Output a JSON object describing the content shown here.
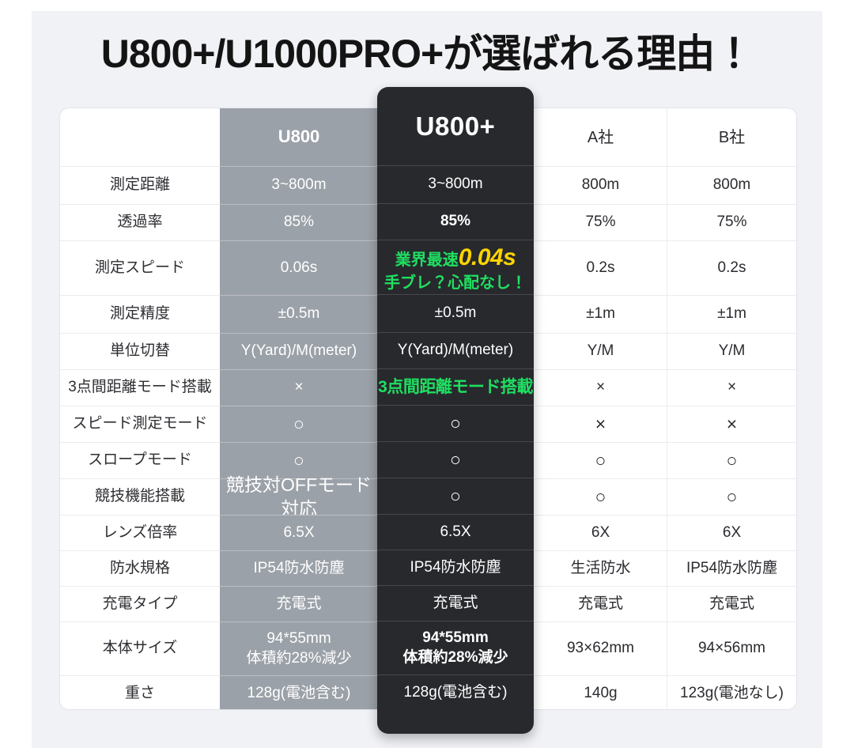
{
  "chart_data": {
    "type": "table",
    "title": "U800+/U1000PRO+が選ばれる理由！",
    "columns": {
      "u800": "U800",
      "u800_plus": "U800+",
      "a": "A社",
      "b": "B社"
    },
    "rows": [
      {
        "label": "測定距離",
        "u800": "3~800m",
        "u800_plus": "3~800m",
        "a": "800m",
        "b": "800m"
      },
      {
        "label": "透過率",
        "u800": "85%",
        "u800_plus": "85%",
        "u800_plus_bold": true,
        "a": "75%",
        "b": "75%"
      },
      {
        "label": "測定スピード",
        "u800": "0.06s",
        "u800_plus_special": {
          "prefix": "業界最速",
          "highlight": "0.04s",
          "line2": "手ブレ？心配なし！"
        },
        "a": "0.2s",
        "b": "0.2s",
        "tall": true
      },
      {
        "label": "測定精度",
        "u800": "±0.5m",
        "u800_plus": "±0.5m",
        "a": "±1m",
        "b": "±1m"
      },
      {
        "label": "単位切替",
        "u800": "Y(Yard)/M(meter)",
        "u800_plus": "Y(Yard)/M(meter)",
        "a": "Y/M",
        "b": "Y/M"
      },
      {
        "label": "3点間距離モード搭載",
        "u800": "×",
        "u800_plus": "3点間距離モード搭載",
        "u800_plus_green": true,
        "a": "×",
        "b": "×"
      },
      {
        "label": "スピード測定モード",
        "u800": "○",
        "u800_plus": "○",
        "a": "×",
        "b": "×",
        "symbol": true
      },
      {
        "label": "スロープモード",
        "u800": "○",
        "u800_plus": "○",
        "a": "○",
        "b": "○",
        "symbol": true
      },
      {
        "label": "競技機能搭載",
        "u800": "競技対OFFモード対応",
        "u800_plus": "○",
        "a": "○",
        "b": "○",
        "symbol": true
      },
      {
        "label": "レンズ倍率",
        "u800": "6.5X",
        "u800_plus": "6.5X",
        "a": "6X",
        "b": "6X"
      },
      {
        "label": "防水規格",
        "u800": "IP54防水防塵",
        "u800_plus": "IP54防水防塵",
        "a": "生活防水",
        "b": "IP54防水防塵"
      },
      {
        "label": "充電タイプ",
        "u800": "充電式",
        "u800_plus": "充電式",
        "a": "充電式",
        "b": "充電式"
      },
      {
        "label": "本体サイズ",
        "u800": "94*55mm\n体積約28%減少",
        "u800_plus": "94*55mm\n体積約28%減少",
        "u800_plus_bold": true,
        "a": "93×62mm",
        "b": "94×56mm",
        "tall": true
      },
      {
        "label": "重さ",
        "u800": "128g(電池含む)",
        "u800_plus": "128g(電池含む)",
        "a": "140g",
        "b": "123g(電池なし)"
      }
    ]
  },
  "colors": {
    "accent_green": "#1fdf61",
    "accent_yellow": "#ffd400",
    "dark_card": "#27292d",
    "gray_col": "#9ba1a8",
    "panel_bg": "#f1f2f6",
    "title_color": "#141414"
  }
}
